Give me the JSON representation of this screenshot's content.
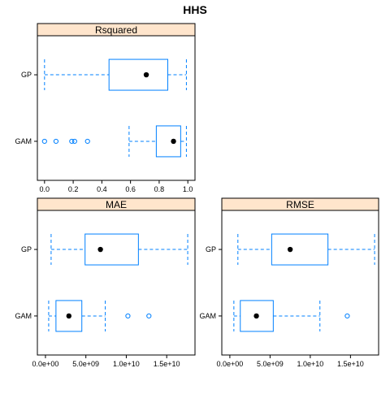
{
  "title": "HHS",
  "colors": {
    "box": "#0080ff",
    "median": "#000000",
    "strip_fill": "#ffe5cc",
    "panel_border": "#000000"
  },
  "chart_data": [
    {
      "type": "boxplot",
      "panel": "Rsquared",
      "categories": [
        "GAM",
        "GP"
      ],
      "xlim": [
        -0.05,
        1.05
      ],
      "xticks": [
        0.0,
        0.2,
        0.4,
        0.6,
        0.8,
        1.0
      ],
      "xtick_labels": [
        "0.0",
        "0.2",
        "0.4",
        "0.6",
        "0.8",
        "1.0"
      ],
      "boxes": [
        {
          "category": "GAM",
          "whisker_low": 0.59,
          "q1": 0.78,
          "median": 0.9,
          "q3": 0.95,
          "whisker_high": 0.99,
          "outliers": [
            0.0,
            0.08,
            0.19,
            0.21,
            0.3
          ]
        },
        {
          "category": "GP",
          "whisker_low": 0.0,
          "q1": 0.45,
          "median": 0.71,
          "q3": 0.86,
          "whisker_high": 0.99,
          "outliers": []
        }
      ]
    },
    {
      "type": "boxplot",
      "panel": "MAE",
      "categories": [
        "GAM",
        "GP"
      ],
      "xlim": [
        -1000000000.0,
        18500000000.0
      ],
      "xticks": [
        0,
        5000000000.0,
        10000000000.0,
        15000000000.0
      ],
      "xtick_labels": [
        "0.0e+00",
        "5.0e+09",
        "1.0e+10",
        "1.5e+10"
      ],
      "boxes": [
        {
          "category": "GAM",
          "whisker_low": 400000000.0,
          "q1": 1300000000.0,
          "median": 2900000000.0,
          "q3": 4500000000.0,
          "whisker_high": 7400000000.0,
          "outliers": [
            10200000000.0,
            12800000000.0
          ]
        },
        {
          "category": "GP",
          "whisker_low": 700000000.0,
          "q1": 4900000000.0,
          "median": 6800000000.0,
          "q3": 11500000000.0,
          "whisker_high": 17600000000.0,
          "outliers": []
        }
      ]
    },
    {
      "type": "boxplot",
      "panel": "RMSE",
      "categories": [
        "GAM",
        "GP"
      ],
      "xlim": [
        -1000000000.0,
        18500000000.0
      ],
      "xticks": [
        0,
        5000000000.0,
        10000000000.0,
        15000000000.0
      ],
      "xtick_labels": [
        "0.0e+00",
        "5.0e+09",
        "1.0e+10",
        "1.5e+10"
      ],
      "boxes": [
        {
          "category": "GAM",
          "whisker_low": 500000000.0,
          "q1": 1300000000.0,
          "median": 3300000000.0,
          "q3": 5400000000.0,
          "whisker_high": 11200000000.0,
          "outliers": [
            14600000000.0
          ]
        },
        {
          "category": "GP",
          "whisker_low": 1000000000.0,
          "q1": 5200000000.0,
          "median": 7500000000.0,
          "q3": 12200000000.0,
          "whisker_high": 18000000000.0,
          "outliers": []
        }
      ]
    }
  ]
}
